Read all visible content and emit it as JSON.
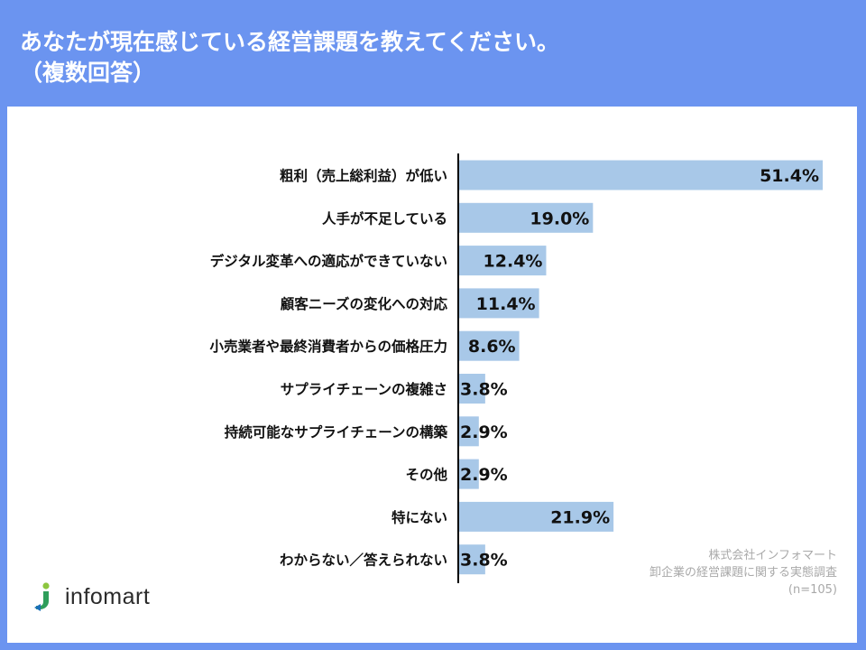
{
  "title": {
    "line1": "あなたが現在感じている経営課題を教えてください。",
    "line2": "（複数回答）"
  },
  "colors": {
    "background": "#6b94f0",
    "bar": "#a8c8e8",
    "axis": "#000000",
    "label_text": "#111111"
  },
  "chart_data": {
    "type": "bar",
    "orientation": "horizontal",
    "title": "あなたが現在感じている経営課題を教えてください。（複数回答）",
    "xlabel": "",
    "ylabel": "",
    "unit": "%",
    "xlim": [
      0,
      55
    ],
    "grid": false,
    "categories": [
      "粗利（売上総利益）が低い",
      "人手が不足している",
      "デジタル変革への適応ができていない",
      "顧客ニーズの変化への対応",
      "小売業者や最終消費者からの価格圧力",
      "サプライチェーンの複雑さ",
      "持続可能なサプライチェーンの構築",
      "その他",
      "特にない",
      "わからない／答えられない"
    ],
    "values": [
      51.4,
      19.0,
      12.4,
      11.4,
      8.6,
      3.8,
      2.9,
      2.9,
      21.9,
      3.8
    ],
    "data_labels": [
      "51.4%",
      "19.0%",
      "12.4%",
      "11.4%",
      "8.6%",
      "3.8%",
      "2.9%",
      "2.9%",
      "21.9%",
      "3.8%"
    ]
  },
  "source": {
    "company": "株式会社インフォマート",
    "survey": "卸企業の経営課題に関する実態調査",
    "sample": "(n=105)"
  },
  "logo": {
    "text": "infomart",
    "icon": "infomart-logo-icon"
  }
}
